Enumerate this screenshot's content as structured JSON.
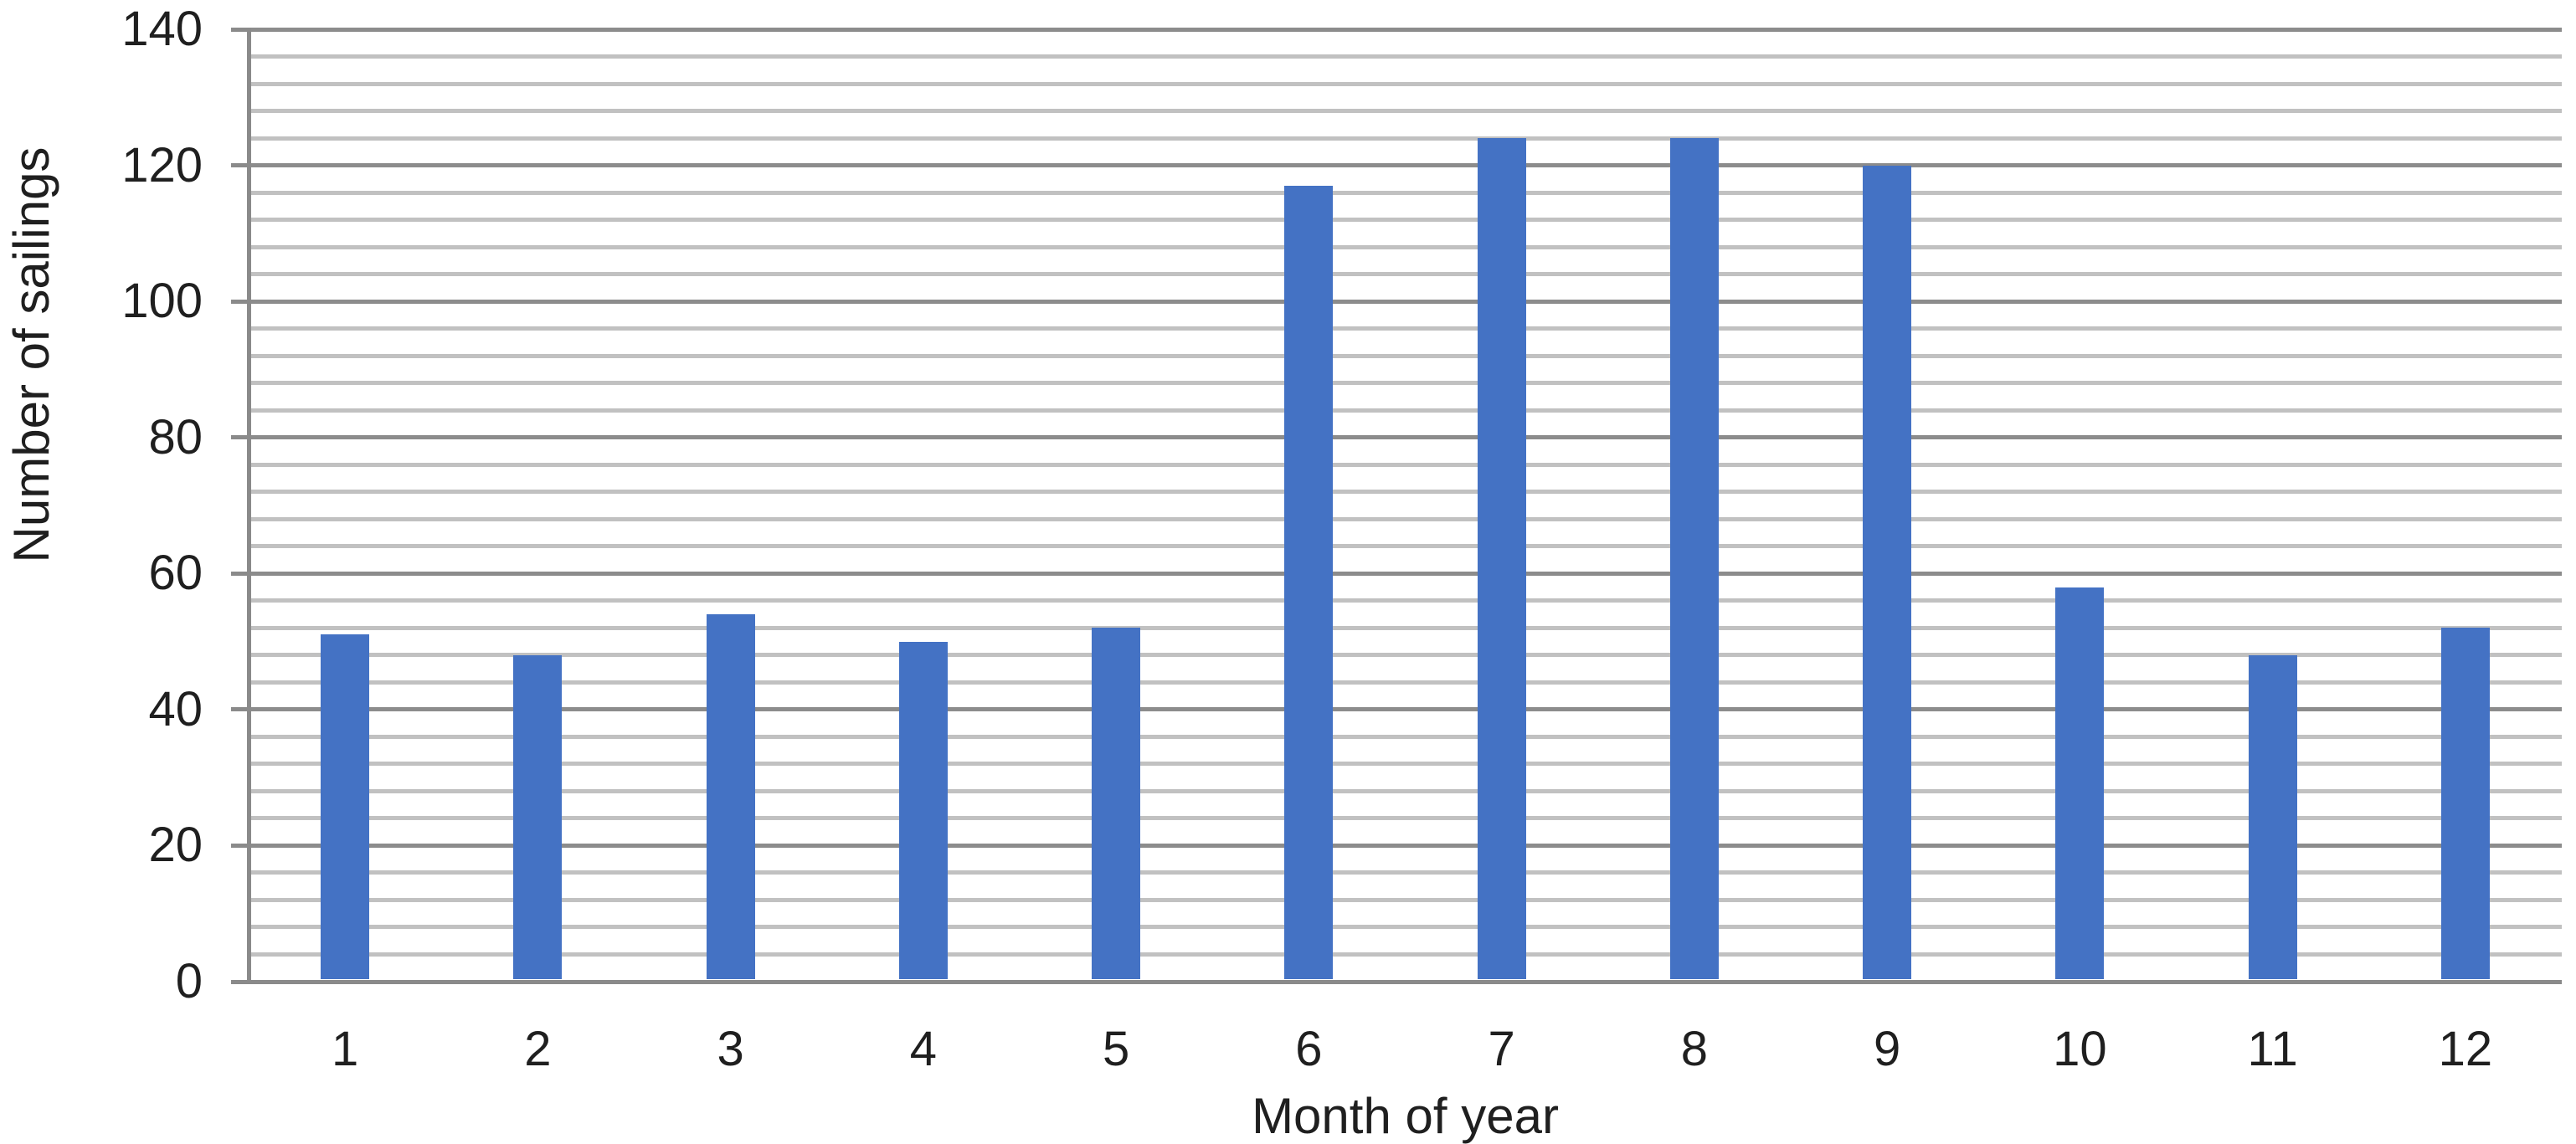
{
  "chart_data": {
    "type": "bar",
    "title": "",
    "categories": [
      "1",
      "2",
      "3",
      "4",
      "5",
      "6",
      "7",
      "8",
      "9",
      "10",
      "11",
      "12"
    ],
    "values": [
      51,
      48,
      54,
      50,
      52,
      117,
      124,
      124,
      120,
      58,
      48,
      52
    ],
    "xlabel": "Month of year",
    "ylabel": "Number of sailings",
    "ylim": [
      0,
      140
    ],
    "y_major_unit": 20,
    "y_minor_unit": 4,
    "y_major_tick_labels": [
      "0",
      "20",
      "40",
      "60",
      "80",
      "100",
      "120",
      "140"
    ],
    "grid": "horizontal major and minor gridlines",
    "legend": "none",
    "bar_color": "#4472C4",
    "major_grid_color": "#8c8c8c",
    "minor_grid_color": "#c1c1c1",
    "axis_color": "#8a8a8a",
    "text_color": "#1f1f1f",
    "background_color": "#ffffff"
  }
}
